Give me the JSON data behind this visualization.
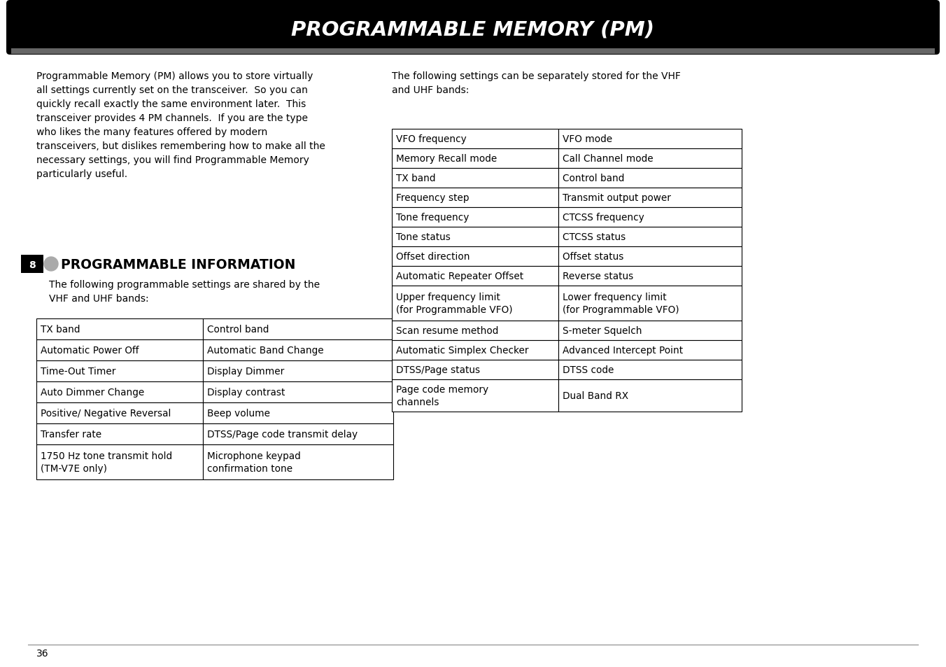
{
  "page_bg": "#ffffff",
  "title_text": "PROGRAMMABLE MEMORY (PM)",
  "title_bg": "#000000",
  "title_color": "#ffffff",
  "left_paragraph": "Programmable Memory (PM) allows you to store virtually\nall settings currently set on the transceiver.  So you can\nquickly recall exactly the same environment later.  This\ntransceiver provides 4 PM channels.  If you are the type\nwho likes the many features offered by modern\ntransceivers, but dislikes remembering how to make all the\nnecessary settings, you will find Programmable Memory\nparticularly useful.",
  "right_paragraph": "The following settings can be separately stored for the VHF\nand UHF bands:",
  "section_num": "8",
  "section_title": "PROGRAMMABLE INFORMATION",
  "section_subtitle": "The following programmable settings are shared by the\nVHF and UHF bands:",
  "left_table": [
    [
      "TX band",
      "Control band"
    ],
    [
      "Automatic Power Off",
      "Automatic Band Change"
    ],
    [
      "Time-Out Timer",
      "Display Dimmer"
    ],
    [
      "Auto Dimmer Change",
      "Display contrast"
    ],
    [
      "Positive/ Negative Reversal",
      "Beep volume"
    ],
    [
      "Transfer rate",
      "DTSS/Page code transmit delay"
    ],
    [
      "1750 Hz tone transmit hold\n(TM-V7E only)",
      "Microphone keypad\nconfirmation tone"
    ]
  ],
  "right_table": [
    [
      "VFO frequency",
      "VFO mode"
    ],
    [
      "Memory Recall mode",
      "Call Channel mode"
    ],
    [
      "TX band",
      "Control band"
    ],
    [
      "Frequency step",
      "Transmit output power"
    ],
    [
      "Tone frequency",
      "CTCSS frequency"
    ],
    [
      "Tone status",
      "CTCSS status"
    ],
    [
      "Offset direction",
      "Offset status"
    ],
    [
      "Automatic Repeater Offset",
      "Reverse status"
    ],
    [
      "Upper frequency limit\n(for Programmable VFO)",
      "Lower frequency limit\n(for Programmable VFO)"
    ],
    [
      "Scan resume method",
      "S-meter Squelch"
    ],
    [
      "Automatic Simplex Checker",
      "Advanced Intercept Point"
    ],
    [
      "DTSS/Page status",
      "DTSS code"
    ],
    [
      "Page code memory\nchannels",
      "Dual Band RX"
    ]
  ],
  "footer_text": "36"
}
